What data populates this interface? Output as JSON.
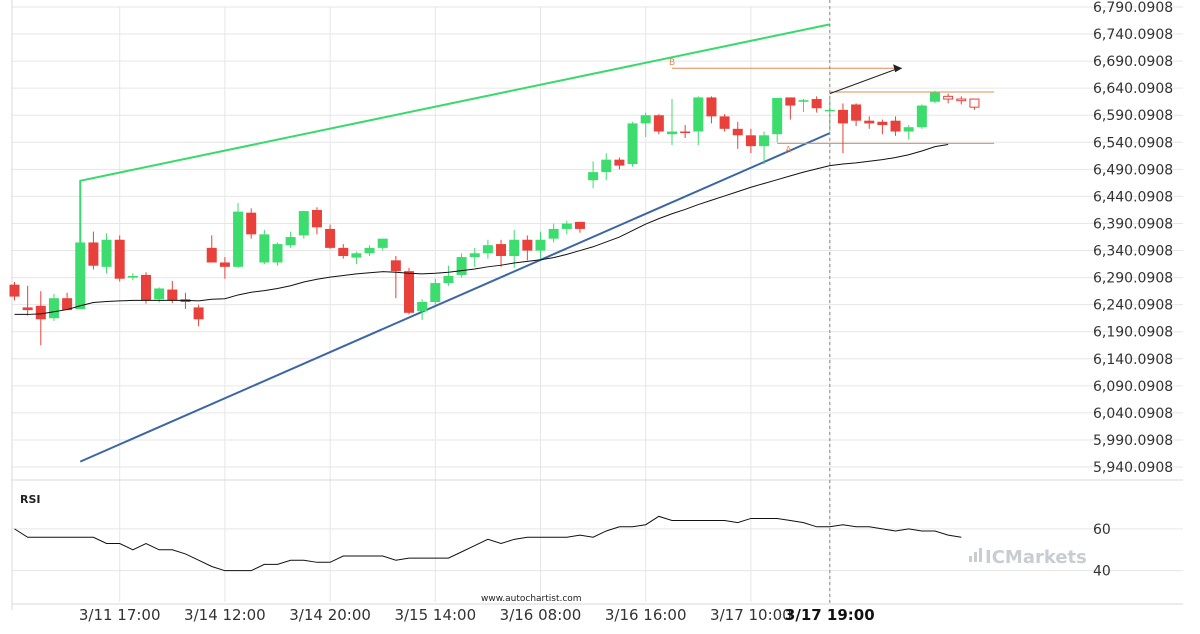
{
  "brand": {
    "name": "ICMarkets",
    "website": "www.autochartist.com"
  },
  "colors": {
    "bull": "#3ddc6e",
    "bear": "#e8403a",
    "pattern_upper": "#39d96b",
    "pattern_lower": "#3c66a5",
    "level": "#e08b52",
    "projection_arrow": "#222222",
    "moving_average": "#111111",
    "rsi_line": "#111111",
    "grid": "#e6e6e6"
  },
  "chart_data": [
    {
      "type": "candlestick",
      "ylim": [
        5940.0908,
        6790.0908
      ],
      "y_ticks": [
        "6,790.0908",
        "6,740.0908",
        "6,690.0908",
        "6,640.0908",
        "6,590.0908",
        "6,540.0908",
        "6,490.0908",
        "6,440.0908",
        "6,390.0908",
        "6,340.0908",
        "6,290.0908",
        "6,240.0908",
        "6,190.0908",
        "6,140.0908",
        "6,090.0908",
        "6,040.0908",
        "5,990.0908",
        "5,940.0908"
      ],
      "x_ticks": [
        "3/11 17:00",
        "3/14 12:00",
        "3/14 20:00",
        "3/15 14:00",
        "3/16 08:00",
        "3/16 16:00",
        "3/17 10:00",
        "3/17 19:00"
      ],
      "x_tick_index": [
        8,
        16,
        24,
        32,
        40,
        48,
        56,
        62
      ],
      "highlight_tick": "3/17 19:00",
      "current_index": 62,
      "candles": [
        {
          "o": 6277,
          "h": 6282,
          "l": 6248,
          "c": 6255
        },
        {
          "o": 6235,
          "h": 6275,
          "l": 6220,
          "c": 6230
        },
        {
          "o": 6238,
          "h": 6265,
          "l": 6165,
          "c": 6213
        },
        {
          "o": 6215,
          "h": 6260,
          "l": 6210,
          "c": 6252
        },
        {
          "o": 6252,
          "h": 6262,
          "l": 6232,
          "c": 6230
        },
        {
          "o": 6232,
          "h": 6355,
          "l": 6232,
          "c": 6355
        },
        {
          "o": 6355,
          "h": 6375,
          "l": 6305,
          "c": 6312
        },
        {
          "o": 6310,
          "h": 6372,
          "l": 6298,
          "c": 6360
        },
        {
          "o": 6360,
          "h": 6368,
          "l": 6283,
          "c": 6288
        },
        {
          "o": 6290,
          "h": 6298,
          "l": 6285,
          "c": 6293
        },
        {
          "o": 6295,
          "h": 6300,
          "l": 6242,
          "c": 6248
        },
        {
          "o": 6250,
          "h": 6272,
          "l": 6244,
          "c": 6270
        },
        {
          "o": 6268,
          "h": 6284,
          "l": 6243,
          "c": 6248
        },
        {
          "o": 6250,
          "h": 6262,
          "l": 6232,
          "c": 6245
        },
        {
          "o": 6235,
          "h": 6240,
          "l": 6200,
          "c": 6213
        },
        {
          "o": 6345,
          "h": 6368,
          "l": 6318,
          "c": 6318
        },
        {
          "o": 6318,
          "h": 6328,
          "l": 6288,
          "c": 6310
        },
        {
          "o": 6310,
          "h": 6428,
          "l": 6308,
          "c": 6412
        },
        {
          "o": 6410,
          "h": 6418,
          "l": 6362,
          "c": 6370
        },
        {
          "o": 6318,
          "h": 6378,
          "l": 6315,
          "c": 6370
        },
        {
          "o": 6318,
          "h": 6355,
          "l": 6312,
          "c": 6352
        },
        {
          "o": 6350,
          "h": 6375,
          "l": 6345,
          "c": 6365
        },
        {
          "o": 6368,
          "h": 6413,
          "l": 6362,
          "c": 6413
        },
        {
          "o": 6415,
          "h": 6420,
          "l": 6370,
          "c": 6383
        },
        {
          "o": 6380,
          "h": 6388,
          "l": 6343,
          "c": 6345
        },
        {
          "o": 6345,
          "h": 6352,
          "l": 6325,
          "c": 6330
        },
        {
          "o": 6327,
          "h": 6338,
          "l": 6315,
          "c": 6335
        },
        {
          "o": 6335,
          "h": 6350,
          "l": 6330,
          "c": 6345
        },
        {
          "o": 6345,
          "h": 6362,
          "l": 6340,
          "c": 6362
        },
        {
          "o": 6322,
          "h": 6330,
          "l": 6252,
          "c": 6302
        },
        {
          "o": 6302,
          "h": 6308,
          "l": 6222,
          "c": 6225
        },
        {
          "o": 6228,
          "h": 6250,
          "l": 6212,
          "c": 6245
        },
        {
          "o": 6245,
          "h": 6288,
          "l": 6240,
          "c": 6280
        },
        {
          "o": 6280,
          "h": 6312,
          "l": 6275,
          "c": 6293
        },
        {
          "o": 6295,
          "h": 6335,
          "l": 6290,
          "c": 6328
        },
        {
          "o": 6328,
          "h": 6345,
          "l": 6310,
          "c": 6335
        },
        {
          "o": 6335,
          "h": 6360,
          "l": 6325,
          "c": 6350
        },
        {
          "o": 6352,
          "h": 6360,
          "l": 6310,
          "c": 6330
        },
        {
          "o": 6330,
          "h": 6378,
          "l": 6308,
          "c": 6360
        },
        {
          "o": 6360,
          "h": 6368,
          "l": 6322,
          "c": 6340
        },
        {
          "o": 6340,
          "h": 6375,
          "l": 6325,
          "c": 6360
        },
        {
          "o": 6362,
          "h": 6390,
          "l": 6355,
          "c": 6380
        },
        {
          "o": 6380,
          "h": 6395,
          "l": 6370,
          "c": 6390
        },
        {
          "o": 6393,
          "h": 6390,
          "l": 6373,
          "c": 6380
        },
        {
          "o": 6470,
          "h": 6505,
          "l": 6455,
          "c": 6485
        },
        {
          "o": 6485,
          "h": 6520,
          "l": 6470,
          "c": 6508
        },
        {
          "o": 6508,
          "h": 6512,
          "l": 6490,
          "c": 6497
        },
        {
          "o": 6500,
          "h": 6578,
          "l": 6495,
          "c": 6575
        },
        {
          "o": 6575,
          "h": 6595,
          "l": 6550,
          "c": 6590
        },
        {
          "o": 6590,
          "h": 6592,
          "l": 6555,
          "c": 6560
        },
        {
          "o": 6555,
          "h": 6620,
          "l": 6535,
          "c": 6560
        },
        {
          "o": 6560,
          "h": 6572,
          "l": 6548,
          "c": 6558
        },
        {
          "o": 6560,
          "h": 6625,
          "l": 6535,
          "c": 6623
        },
        {
          "o": 6623,
          "h": 6625,
          "l": 6575,
          "c": 6588
        },
        {
          "o": 6588,
          "h": 6592,
          "l": 6560,
          "c": 6565
        },
        {
          "o": 6565,
          "h": 6578,
          "l": 6528,
          "c": 6553
        },
        {
          "o": 6553,
          "h": 6565,
          "l": 6520,
          "c": 6533
        },
        {
          "o": 6533,
          "h": 6560,
          "l": 6500,
          "c": 6553
        },
        {
          "o": 6555,
          "h": 6622,
          "l": 6540,
          "c": 6622
        },
        {
          "o": 6623,
          "h": 6615,
          "l": 6582,
          "c": 6608
        },
        {
          "o": 6615,
          "h": 6620,
          "l": 6596,
          "c": 6618
        },
        {
          "o": 6620,
          "h": 6625,
          "l": 6595,
          "c": 6603
        },
        {
          "o": 6600,
          "h": 6620,
          "l": 6560,
          "c": 6600
        },
        {
          "o": 6600,
          "h": 6612,
          "l": 6520,
          "c": 6575
        },
        {
          "o": 6610,
          "h": 6612,
          "l": 6570,
          "c": 6580
        },
        {
          "o": 6580,
          "h": 6588,
          "l": 6565,
          "c": 6575
        },
        {
          "o": 6578,
          "h": 6582,
          "l": 6555,
          "c": 6572
        },
        {
          "o": 6580,
          "h": 6588,
          "l": 6552,
          "c": 6560
        },
        {
          "o": 6560,
          "h": 6572,
          "l": 6545,
          "c": 6568
        },
        {
          "o": 6568,
          "h": 6610,
          "l": 6565,
          "c": 6608
        },
        {
          "o": 6615,
          "h": 6635,
          "l": 6612,
          "c": 6632
        },
        {
          "o": 6625,
          "h": 6630,
          "l": 6612,
          "c": 6620
        },
        {
          "o": 6620,
          "h": 6625,
          "l": 6610,
          "c": 6617
        },
        {
          "o": 6620,
          "h": 6618,
          "l": 6600,
          "c": 6605
        }
      ],
      "moving_average": [
        6222,
        6222,
        6223,
        6227,
        6231,
        6238,
        6244,
        6246,
        6247,
        6248,
        6248,
        6248,
        6248,
        6248,
        6247,
        6250,
        6251,
        6258,
        6263,
        6266,
        6270,
        6275,
        6282,
        6287,
        6291,
        6294,
        6297,
        6299,
        6301,
        6300,
        6298,
        6297,
        6298,
        6300,
        6303,
        6306,
        6310,
        6313,
        6317,
        6320,
        6323,
        6327,
        6333,
        6340,
        6347,
        6356,
        6365,
        6377,
        6389,
        6399,
        6408,
        6416,
        6425,
        6433,
        6441,
        6449,
        6457,
        6464,
        6471,
        6478,
        6485,
        6491,
        6497,
        6500,
        6502,
        6505,
        6508,
        6512,
        6517,
        6524,
        6532,
        6536
      ],
      "pattern": {
        "upper_line": {
          "from": [
            5,
            6469
          ],
          "start": [
            5,
            6355
          ],
          "to": [
            62,
            6758
          ]
        },
        "lower_line": {
          "from": [
            5,
            5950
          ],
          "to": [
            62,
            6557
          ]
        },
        "resistance_B": {
          "label": "B",
          "from": [
            50,
            6677
          ],
          "to": [
            67.5,
            6677
          ]
        },
        "support_A": {
          "label": "A",
          "from": [
            58,
            6538
          ],
          "to": [
            74.5,
            6538
          ]
        },
        "current_level": {
          "from": [
            62,
            6633
          ],
          "to": [
            74.5,
            6633
          ]
        },
        "projection": {
          "from": [
            62,
            6630
          ],
          "to": [
            67.5,
            6677
          ]
        }
      }
    },
    {
      "type": "line",
      "title": "RSI",
      "y_ticks": [
        60,
        40
      ],
      "ylim": [
        25,
        70
      ],
      "values": [
        60,
        56,
        56,
        56,
        56,
        56,
        56,
        53,
        53,
        50,
        53,
        50,
        50,
        48,
        45,
        42,
        40,
        40,
        40,
        43,
        43,
        45,
        45,
        44,
        44,
        47,
        47,
        47,
        47,
        45,
        46,
        46,
        46,
        46,
        49,
        52,
        55,
        53,
        55,
        56,
        56,
        56,
        56,
        57,
        56,
        59,
        61,
        61,
        62,
        66,
        64,
        64,
        64,
        64,
        64,
        63,
        65,
        65,
        65,
        64,
        63,
        61,
        61,
        62,
        61,
        61,
        60,
        59,
        60,
        59,
        59,
        57,
        56
      ]
    }
  ]
}
